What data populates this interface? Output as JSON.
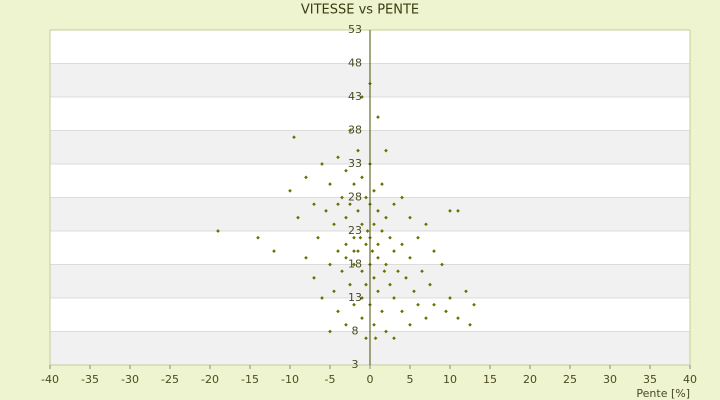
{
  "chart_data": {
    "type": "scatter",
    "title": "VITESSE vs PENTE",
    "x_label": "Pente [%]",
    "color": "#6b6e00",
    "x": [
      -19,
      -14,
      -12,
      -10,
      -9.5,
      -9,
      -8,
      -8,
      -7,
      -7,
      -6.5,
      -6,
      -6,
      -5.5,
      -5,
      -5,
      -5,
      -4.5,
      -4.5,
      -4,
      -4,
      -4,
      -3.5,
      -3.5,
      -3,
      -3,
      -3,
      -3,
      -2.5,
      -2.5,
      -2.5,
      -2,
      -2,
      -2,
      -2,
      -1.5,
      -1.5,
      -1.5,
      -1,
      -1,
      -1,
      -1,
      -1,
      -0.5,
      -0.5,
      -0.5,
      -0.5,
      0,
      0,
      0,
      0,
      0,
      0,
      0.5,
      0.5,
      0.5,
      0.5,
      1,
      1,
      1,
      1,
      1,
      1.5,
      1.5,
      1.5,
      2,
      2,
      2,
      2,
      2.5,
      2.5,
      3,
      3,
      3,
      3,
      3.5,
      4,
      4,
      4,
      4.5,
      5,
      5,
      5,
      5.5,
      6,
      6,
      6.5,
      7,
      7,
      7.5,
      8,
      8,
      9,
      9.5,
      10,
      10,
      11,
      11,
      12,
      12.5,
      13,
      -2,
      -0.3,
      0.3,
      -1.2,
      1.8,
      -3,
      -4,
      -1,
      0.7
    ],
    "values": [
      23,
      22,
      20,
      29,
      37,
      25,
      31,
      19,
      27,
      16,
      22,
      33,
      13,
      26,
      30,
      18,
      8,
      24,
      14,
      34,
      20,
      11,
      28,
      17,
      32,
      25,
      19,
      9,
      38,
      27,
      15,
      30,
      22,
      18,
      12,
      35,
      26,
      20,
      43,
      31,
      24,
      17,
      10,
      28,
      21,
      15,
      7,
      45,
      33,
      27,
      22,
      18,
      12,
      29,
      24,
      16,
      9,
      40,
      26,
      21,
      19,
      14,
      30,
      23,
      11,
      35,
      25,
      18,
      8,
      22,
      15,
      27,
      20,
      13,
      7,
      17,
      28,
      21,
      11,
      16,
      25,
      19,
      9,
      14,
      22,
      12,
      17,
      24,
      10,
      15,
      20,
      12,
      18,
      11,
      26,
      13,
      26,
      10,
      14,
      9,
      12,
      20,
      23,
      20,
      22,
      17,
      21,
      27,
      13,
      7
    ],
    "xlim": [
      -40,
      40
    ],
    "xticks": [
      -40,
      -35,
      -30,
      -25,
      -20,
      -15,
      -10,
      -5,
      0,
      5,
      10,
      15,
      20,
      25,
      30,
      35,
      40
    ],
    "ylim": [
      3,
      53
    ],
    "yticks": [
      53,
      48,
      43,
      38,
      33,
      28,
      23,
      18,
      13,
      8,
      3
    ],
    "grid": true
  }
}
